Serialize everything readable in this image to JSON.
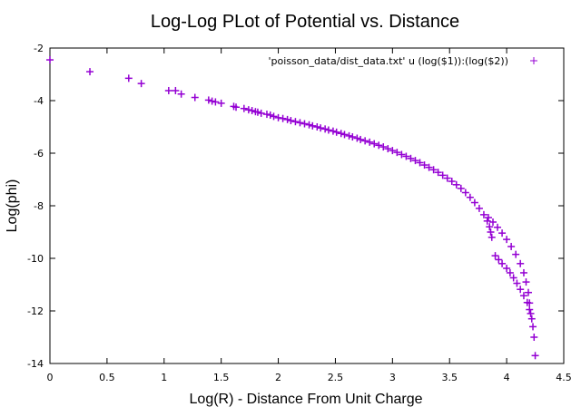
{
  "chart_data": {
    "type": "scatter",
    "title": "Log-Log PLot of Potential vs. Distance",
    "xlabel": "Log(R) - Distance From Unit Charge",
    "ylabel": "Log(phi)",
    "xlim": [
      0,
      4.5
    ],
    "ylim": [
      -14,
      -2
    ],
    "x_ticks": [
      "0",
      "0.5",
      "1",
      "1.5",
      "2",
      "2.5",
      "3",
      "3.5",
      "4",
      "4.5"
    ],
    "y_ticks": [
      "-2",
      "-4",
      "-6",
      "-8",
      "-10",
      "-12",
      "-14"
    ],
    "grid": false,
    "legend": {
      "position": "top-right",
      "marker": "+"
    },
    "colors": {
      "series": "#9400d3",
      "axes": "#000000"
    },
    "series": [
      {
        "name": "'poisson_data/dist_data.txt' u (log($1)):(log($2))",
        "marker": "+",
        "points": [
          [
            0.0,
            -2.45
          ],
          [
            0.35,
            -2.9
          ],
          [
            0.69,
            -3.15
          ],
          [
            0.8,
            -3.35
          ],
          [
            1.04,
            -3.62
          ],
          [
            1.1,
            -3.62
          ],
          [
            1.15,
            -3.75
          ],
          [
            1.27,
            -3.88
          ],
          [
            1.39,
            -3.98
          ],
          [
            1.42,
            -4.02
          ],
          [
            1.45,
            -4.05
          ],
          [
            1.5,
            -4.1
          ],
          [
            1.61,
            -4.22
          ],
          [
            1.63,
            -4.25
          ],
          [
            1.7,
            -4.3
          ],
          [
            1.74,
            -4.35
          ],
          [
            1.77,
            -4.38
          ],
          [
            1.8,
            -4.42
          ],
          [
            1.82,
            -4.44
          ],
          [
            1.85,
            -4.48
          ],
          [
            1.9,
            -4.52
          ],
          [
            1.93,
            -4.55
          ],
          [
            1.96,
            -4.6
          ],
          [
            2.0,
            -4.65
          ],
          [
            2.04,
            -4.68
          ],
          [
            2.08,
            -4.72
          ],
          [
            2.11,
            -4.76
          ],
          [
            2.15,
            -4.8
          ],
          [
            2.19,
            -4.84
          ],
          [
            2.23,
            -4.88
          ],
          [
            2.27,
            -4.92
          ],
          [
            2.3,
            -4.96
          ],
          [
            2.34,
            -5.0
          ],
          [
            2.37,
            -5.04
          ],
          [
            2.41,
            -5.08
          ],
          [
            2.44,
            -5.12
          ],
          [
            2.48,
            -5.16
          ],
          [
            2.51,
            -5.2
          ],
          [
            2.55,
            -5.25
          ],
          [
            2.58,
            -5.29
          ],
          [
            2.62,
            -5.34
          ],
          [
            2.65,
            -5.38
          ],
          [
            2.69,
            -5.43
          ],
          [
            2.72,
            -5.48
          ],
          [
            2.76,
            -5.53
          ],
          [
            2.8,
            -5.58
          ],
          [
            2.84,
            -5.64
          ],
          [
            2.88,
            -5.7
          ],
          [
            2.92,
            -5.76
          ],
          [
            2.96,
            -5.83
          ],
          [
            3.0,
            -5.9
          ],
          [
            3.04,
            -5.97
          ],
          [
            3.08,
            -6.05
          ],
          [
            3.12,
            -6.12
          ],
          [
            3.16,
            -6.2
          ],
          [
            3.2,
            -6.28
          ],
          [
            3.24,
            -6.36
          ],
          [
            3.28,
            -6.45
          ],
          [
            3.32,
            -6.54
          ],
          [
            3.36,
            -6.63
          ],
          [
            3.4,
            -6.73
          ],
          [
            3.44,
            -6.84
          ],
          [
            3.48,
            -6.95
          ],
          [
            3.52,
            -7.07
          ],
          [
            3.56,
            -7.2
          ],
          [
            3.6,
            -7.34
          ],
          [
            3.64,
            -7.5
          ],
          [
            3.68,
            -7.68
          ],
          [
            3.72,
            -7.88
          ],
          [
            3.76,
            -8.1
          ],
          [
            3.8,
            -8.34
          ],
          [
            3.83,
            -8.58
          ],
          [
            3.85,
            -8.8
          ],
          [
            3.86,
            -9.0
          ],
          [
            3.87,
            -9.2
          ],
          [
            3.84,
            -8.45
          ],
          [
            3.88,
            -8.62
          ],
          [
            3.92,
            -8.82
          ],
          [
            3.96,
            -9.04
          ],
          [
            4.0,
            -9.28
          ],
          [
            4.04,
            -9.55
          ],
          [
            4.08,
            -9.85
          ],
          [
            4.12,
            -10.2
          ],
          [
            4.15,
            -10.55
          ],
          [
            4.17,
            -10.9
          ],
          [
            4.19,
            -11.3
          ],
          [
            4.2,
            -11.7
          ],
          [
            4.21,
            -12.1
          ],
          [
            3.9,
            -9.9
          ],
          [
            3.93,
            -10.05
          ],
          [
            3.96,
            -10.2
          ],
          [
            4.0,
            -10.38
          ],
          [
            4.03,
            -10.55
          ],
          [
            4.06,
            -10.74
          ],
          [
            4.09,
            -10.95
          ],
          [
            4.12,
            -11.18
          ],
          [
            4.15,
            -11.42
          ],
          [
            4.18,
            -11.68
          ],
          [
            4.2,
            -11.95
          ],
          [
            4.22,
            -12.3
          ],
          [
            4.23,
            -12.6
          ],
          [
            4.24,
            -13.0
          ],
          [
            4.25,
            -13.7
          ]
        ]
      }
    ]
  }
}
